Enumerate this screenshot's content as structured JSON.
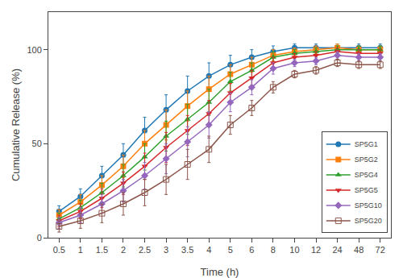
{
  "chart_data": {
    "type": "line",
    "xlabel": "Time (h)",
    "ylabel": "Cumulative Release (%)",
    "categories": [
      "0.5",
      "1",
      "1.5",
      "2",
      "2.5",
      "3",
      "3.5",
      "4",
      "5",
      "6",
      "8",
      "10",
      "12",
      "24",
      "48",
      "72"
    ],
    "series": [
      {
        "name": "SP5G1",
        "marker": "circle",
        "values": [
          14,
          22,
          33,
          44,
          57,
          68,
          78,
          86,
          92,
          96,
          99,
          101,
          101,
          101,
          101,
          101
        ],
        "errors": [
          3,
          4,
          5,
          6,
          7,
          8,
          8,
          7,
          5,
          4,
          3,
          2,
          2,
          2,
          2,
          2
        ]
      },
      {
        "name": "SP5G2",
        "marker": "square",
        "values": [
          12,
          19,
          28,
          38,
          50,
          60,
          70,
          79,
          87,
          92,
          97,
          99,
          100,
          101,
          100,
          100
        ],
        "errors": [
          3,
          4,
          5,
          6,
          7,
          8,
          8,
          7,
          5,
          4,
          3,
          2,
          2,
          2,
          2,
          2
        ]
      },
      {
        "name": "SP5G4",
        "marker": "triangle-up",
        "values": [
          10,
          16,
          24,
          33,
          43,
          54,
          63,
          72,
          83,
          89,
          96,
          98,
          99,
          100,
          100,
          100
        ],
        "errors": [
          3,
          4,
          5,
          6,
          7,
          8,
          8,
          7,
          5,
          4,
          3,
          2,
          2,
          2,
          2,
          2
        ]
      },
      {
        "name": "SP5G5",
        "marker": "triangle-down",
        "values": [
          9,
          14,
          21,
          29,
          38,
          48,
          57,
          66,
          77,
          85,
          93,
          96,
          97,
          99,
          98,
          98
        ],
        "errors": [
          3,
          4,
          5,
          6,
          7,
          8,
          8,
          7,
          5,
          4,
          3,
          2,
          2,
          2,
          2,
          2
        ]
      },
      {
        "name": "SP5G10",
        "marker": "diamond",
        "values": [
          8,
          12,
          18,
          25,
          33,
          42,
          51,
          60,
          72,
          80,
          90,
          93,
          94,
          97,
          96,
          96
        ],
        "errors": [
          3,
          4,
          5,
          6,
          7,
          8,
          8,
          7,
          5,
          4,
          3,
          2,
          2,
          2,
          2,
          2
        ]
      },
      {
        "name": "SP5G20",
        "marker": "square-open",
        "values": [
          6,
          9,
          13,
          18,
          24,
          31,
          39,
          47,
          60,
          69,
          80,
          87,
          89,
          93,
          92,
          92
        ],
        "errors": [
          3,
          4,
          5,
          6,
          7,
          8,
          8,
          7,
          5,
          4,
          3,
          2,
          2,
          2,
          2,
          2
        ]
      }
    ],
    "ylim": [
      0,
      120
    ],
    "yticks": [
      0,
      50,
      100
    ],
    "grid": false,
    "legend": "lower right"
  }
}
